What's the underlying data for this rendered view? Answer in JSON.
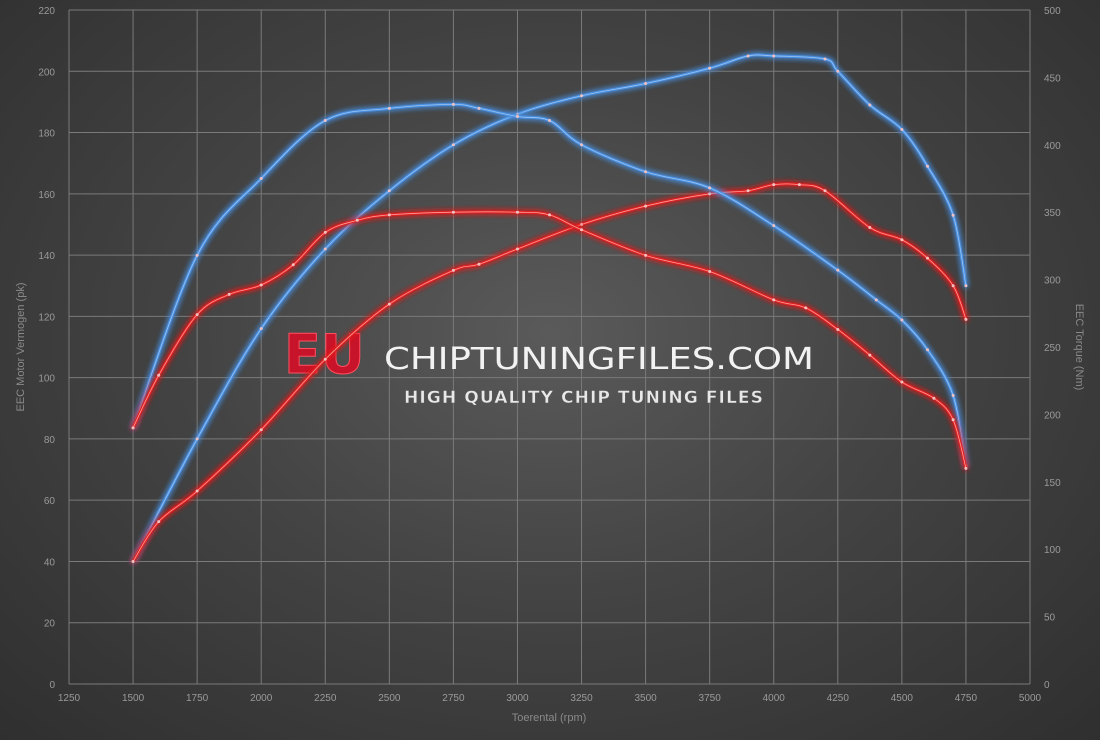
{
  "chart_data": {
    "type": "line",
    "xlabel": "Toerental (rpm)",
    "ylabel_left": "EEC Motor Vermogen (pk)",
    "ylabel_right": "EEC Torque (Nm)",
    "xlim": [
      1250,
      5000
    ],
    "ylim_left": [
      0,
      220
    ],
    "ylim_right": [
      0,
      500
    ],
    "x_ticks": [
      1250,
      1500,
      1750,
      2000,
      2250,
      2500,
      2750,
      3000,
      3250,
      3500,
      3750,
      4000,
      4250,
      4500,
      4750,
      5000
    ],
    "y_ticks_left": [
      0,
      20,
      40,
      60,
      80,
      100,
      120,
      140,
      160,
      180,
      200,
      220
    ],
    "y_ticks_right": [
      0,
      50,
      100,
      150,
      200,
      250,
      300,
      350,
      400,
      450,
      500
    ],
    "grid": true,
    "series": [
      {
        "axis": "left",
        "color": "#4a8fe0",
        "x": [
          1500,
          1750,
          2000,
          2250,
          2500,
          2750,
          3000,
          3250,
          3500,
          3750,
          3900,
          4000,
          4200,
          4250,
          4375,
          4500,
          4600,
          4700,
          4750
        ],
        "y": [
          40,
          80,
          116,
          142,
          161,
          176,
          186,
          192,
          196,
          201,
          205,
          205,
          204,
          200,
          189,
          181,
          169,
          153,
          130
        ]
      },
      {
        "axis": "left",
        "color": "#e02020",
        "x": [
          1500,
          1600,
          1750,
          2000,
          2250,
          2500,
          2750,
          2850,
          3000,
          3250,
          3500,
          3750,
          3900,
          4000,
          4100,
          4200,
          4375,
          4500,
          4600,
          4700,
          4750
        ],
        "y": [
          40,
          53,
          63,
          83,
          106,
          124,
          135,
          137,
          142,
          150,
          156,
          160,
          161,
          163,
          163,
          161,
          149,
          145,
          139,
          130,
          119
        ]
      },
      {
        "axis": "right",
        "color": "#4a8fe0",
        "x": [
          1500,
          1750,
          2000,
          2250,
          2500,
          2750,
          2850,
          3000,
          3125,
          3250,
          3500,
          3750,
          4000,
          4250,
          4400,
          4500,
          4600,
          4700,
          4750
        ],
        "y": [
          190,
          318,
          375,
          418,
          427,
          430,
          427,
          421,
          418,
          400,
          380,
          368,
          340,
          307,
          285,
          270,
          248,
          214,
          162
        ]
      },
      {
        "axis": "right",
        "color": "#e02020",
        "x": [
          1500,
          1600,
          1750,
          1875,
          2000,
          2125,
          2250,
          2375,
          2500,
          2750,
          3000,
          3125,
          3250,
          3500,
          3750,
          4000,
          4125,
          4250,
          4375,
          4500,
          4625,
          4700,
          4750
        ],
        "y": [
          190,
          229,
          274,
          289,
          296,
          311,
          335,
          344,
          348,
          350,
          350,
          348,
          337,
          318,
          306,
          285,
          279,
          263,
          244,
          224,
          212,
          196,
          160
        ]
      }
    ]
  },
  "watermark": {
    "eu": "EU",
    "main": "CHIPTUNINGFILES.COM",
    "sub": "HIGH QUALITY CHIP TUNING FILES"
  }
}
